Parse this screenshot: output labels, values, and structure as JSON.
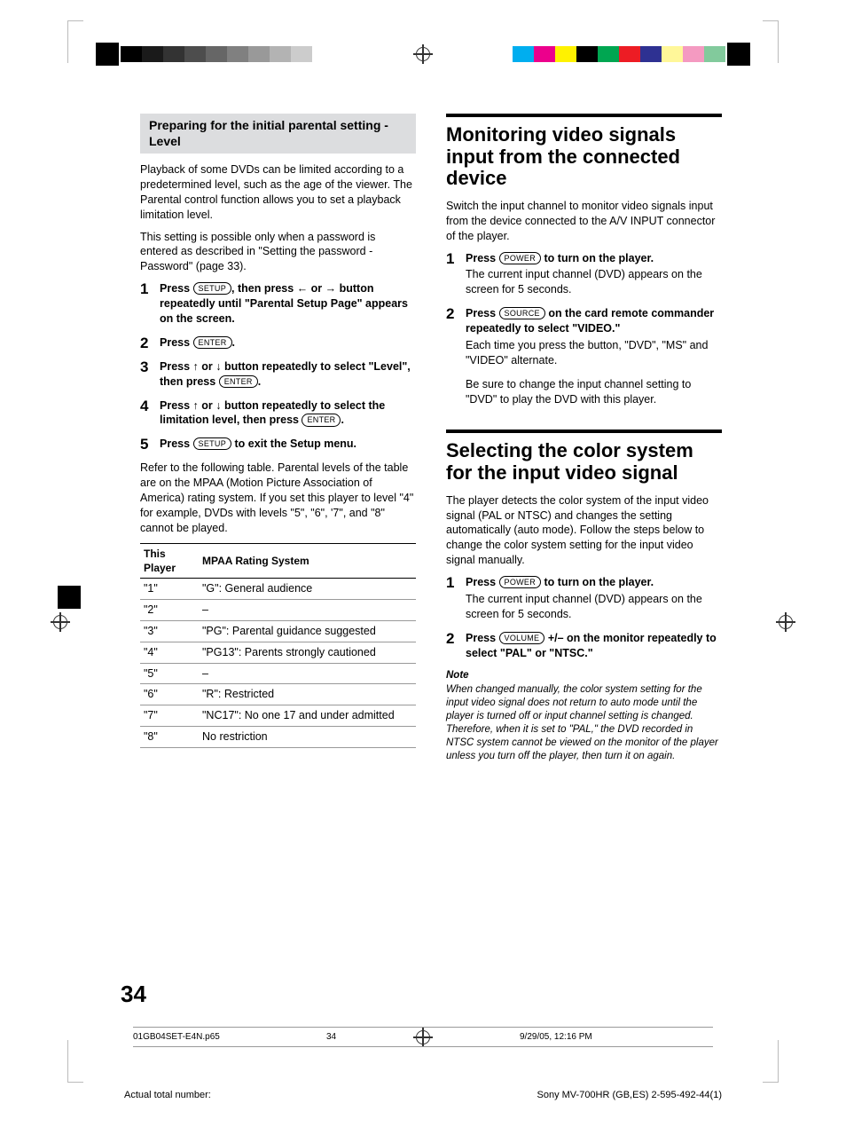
{
  "registration_bars": {
    "left_grays": [
      "#000000",
      "#1a1a1a",
      "#333333",
      "#4d4d4d",
      "#666666",
      "#808080",
      "#999999",
      "#b3b3b3",
      "#cccccc",
      "#ffffff"
    ],
    "right_colors": [
      "#00aeef",
      "#ec008c",
      "#fff200",
      "#000000",
      "#00a651",
      "#ed1c24",
      "#2e3192",
      "#fff799",
      "#f49ac1",
      "#82ca9c"
    ]
  },
  "left_column": {
    "sub_heading": "Preparing for the initial parental setting - Level",
    "intro1": "Playback of some DVDs can be limited according to a predetermined level, such as the age of the viewer. The Parental control function allows you to set a playback limitation level.",
    "intro2": "This setting is possible only when a password is entered as described in \"Setting the password - Password\" (page 33).",
    "steps": [
      {
        "n": "1",
        "pre": "Press ",
        "btn": "SETUP",
        "post": ", then press ← or → button repeatedly until \"Parental Setup Page\" appears on the screen."
      },
      {
        "n": "2",
        "pre": "Press ",
        "btn": "ENTER",
        "post": "."
      },
      {
        "n": "3",
        "pre": "Press ↑ or ↓ button repeatedly to select \"Level\", then press ",
        "btn": "ENTER",
        "post": "."
      },
      {
        "n": "4",
        "pre": "Press ↑ or ↓ button repeatedly to select the limitation level, then press ",
        "btn": "ENTER",
        "post": "."
      },
      {
        "n": "5",
        "pre": "Press ",
        "btn": "SETUP",
        "post": " to exit the Setup menu."
      }
    ],
    "after_steps": "Refer to the following table. Parental levels of the table are on the MPAA (Motion Picture Association of America) rating system. If you set this player to level \"4\" for example, DVDs with levels \"5\", \"6\", '7\", and \"8\" cannot be played.",
    "table": {
      "col1": "This Player",
      "col2": "MPAA Rating System",
      "rows": [
        [
          "\"1\"",
          "\"G\": General audience"
        ],
        [
          "\"2\"",
          "–"
        ],
        [
          "\"3\"",
          "\"PG\": Parental guidance suggested"
        ],
        [
          "\"4\"",
          "\"PG13\": Parents strongly cautioned"
        ],
        [
          "\"5\"",
          "–"
        ],
        [
          "\"6\"",
          "\"R\": Restricted"
        ],
        [
          "\"7\"",
          "\"NC17\": No one 17 and under admitted"
        ],
        [
          "\"8\"",
          "No restriction"
        ]
      ]
    }
  },
  "right_column": {
    "section1": {
      "heading": "Monitoring video signals input from the connected device",
      "intro": "Switch the input channel to monitor video signals input from the device connected to the A/V INPUT connector of the player.",
      "steps": [
        {
          "n": "1",
          "pre": "Press ",
          "btn": "POWER",
          "post": " to turn on the player.",
          "plain": "The current input channel (DVD) appears on the screen for 5 seconds."
        },
        {
          "n": "2",
          "pre": "Press ",
          "btn": "SOURCE",
          "post": " on the card remote commander repeatedly to select \"VIDEO.\"",
          "plain": "Each time you press the button, \"DVD\", \"MS\" and \"VIDEO\" alternate."
        }
      ],
      "tail": "Be sure to change the input channel setting to \"DVD\" to play the DVD with this player."
    },
    "section2": {
      "heading": "Selecting the color system for the input video signal",
      "intro": "The player detects the color system of the input video signal (PAL or NTSC) and changes the setting automatically (auto mode). Follow the steps below to change the color system setting for the input video signal manually.",
      "steps": [
        {
          "n": "1",
          "pre": "Press ",
          "btn": "POWER",
          "post": " to turn on the player.",
          "plain": "The current input channel (DVD) appears on the screen for 5 seconds."
        },
        {
          "n": "2",
          "pre": "Press ",
          "btn": "VOLUME",
          "post": " +/– on the monitor repeatedly to select \"PAL\" or \"NTSC.\""
        }
      ],
      "note_heading": "Note",
      "note": "When changed manually, the color system setting for the input video signal does not return to auto mode until the player is turned off or input channel setting is changed. Therefore, when it is set to \"PAL,\" the DVD recorded in NTSC system cannot be viewed on the monitor of the player unless you turn off the player, then turn it on again."
    }
  },
  "page_number": "34",
  "footer1": {
    "file": "01GB04SET-E4N.p65",
    "page": "34",
    "date": "9/29/05, 12:16 PM"
  },
  "footer2": {
    "left": "Actual total number:",
    "right": "Sony MV-700HR (GB,ES) 2-595-492-44(1)"
  }
}
